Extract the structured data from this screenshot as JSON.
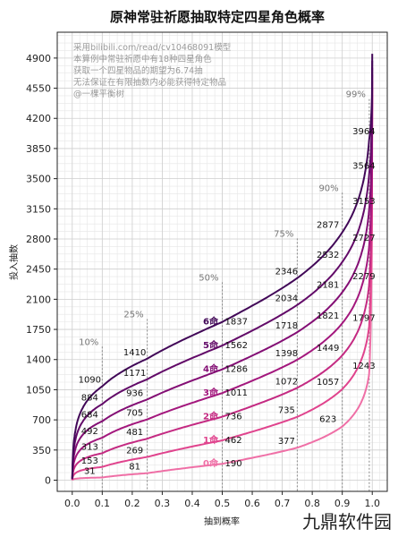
{
  "chart_data": {
    "type": "line",
    "title": "原神常驻祈愿抽取特定四星角色概率",
    "xlabel": "抽到概率",
    "ylabel": "投入抽数",
    "xlim": [
      -0.05,
      1.05
    ],
    "ylim": [
      -130,
      5200
    ],
    "xticks": [
      "0.0",
      "0.1",
      "0.2",
      "0.3",
      "0.4",
      "0.5",
      "0.6",
      "0.7",
      "0.8",
      "0.9",
      "1.0"
    ],
    "yticks": [
      "0",
      "350",
      "700",
      "1050",
      "1400",
      "1750",
      "2100",
      "2450",
      "2800",
      "3150",
      "3500",
      "3850",
      "4200",
      "4550",
      "4900"
    ],
    "grid": true,
    "notes": [
      "采用bilibili.com/read/cv10468091模型",
      "本算例中常驻祈愿中有18种四星角色",
      "获取一个四星物品的期望为6.74抽",
      "无法保证在有限抽数内必能获得特定物品",
      "@一棵平衡树"
    ],
    "percentile_markers": [
      {
        "x": 0.1,
        "label": "10%"
      },
      {
        "x": 0.25,
        "label": "25%"
      },
      {
        "x": 0.5,
        "label": "50%"
      },
      {
        "x": 0.75,
        "label": "75%"
      },
      {
        "x": 0.9,
        "label": "90%"
      },
      {
        "x": 0.99,
        "label": "99%"
      }
    ],
    "x": [
      0.1,
      0.25,
      0.5,
      0.75,
      0.9,
      0.99
    ],
    "series": [
      {
        "name": "0命",
        "color": "#ef6fa6",
        "values": [
          31,
          81,
          190,
          377,
          623,
          1243
        ]
      },
      {
        "name": "1命",
        "color": "#e0438d",
        "values": [
          153,
          269,
          462,
          735,
          1057,
          1797
        ]
      },
      {
        "name": "2命",
        "color": "#c42a82",
        "values": [
          313,
          481,
          736,
          1072,
          1449,
          2279
        ]
      },
      {
        "name": "3命",
        "color": "#a3177d",
        "values": [
          492,
          705,
          1011,
          1398,
          1821,
          2727
        ]
      },
      {
        "name": "4命",
        "color": "#830e74",
        "values": [
          684,
          936,
          1286,
          1718,
          2181,
          3153
        ]
      },
      {
        "name": "5命",
        "color": "#620a68",
        "values": [
          884,
          1171,
          1562,
          2034,
          2532,
          3564
        ]
      },
      {
        "name": "6命",
        "color": "#410757",
        "values": [
          1090,
          1410,
          1837,
          2346,
          2877,
          3964
        ]
      }
    ]
  },
  "watermark": "九鼎软件园"
}
